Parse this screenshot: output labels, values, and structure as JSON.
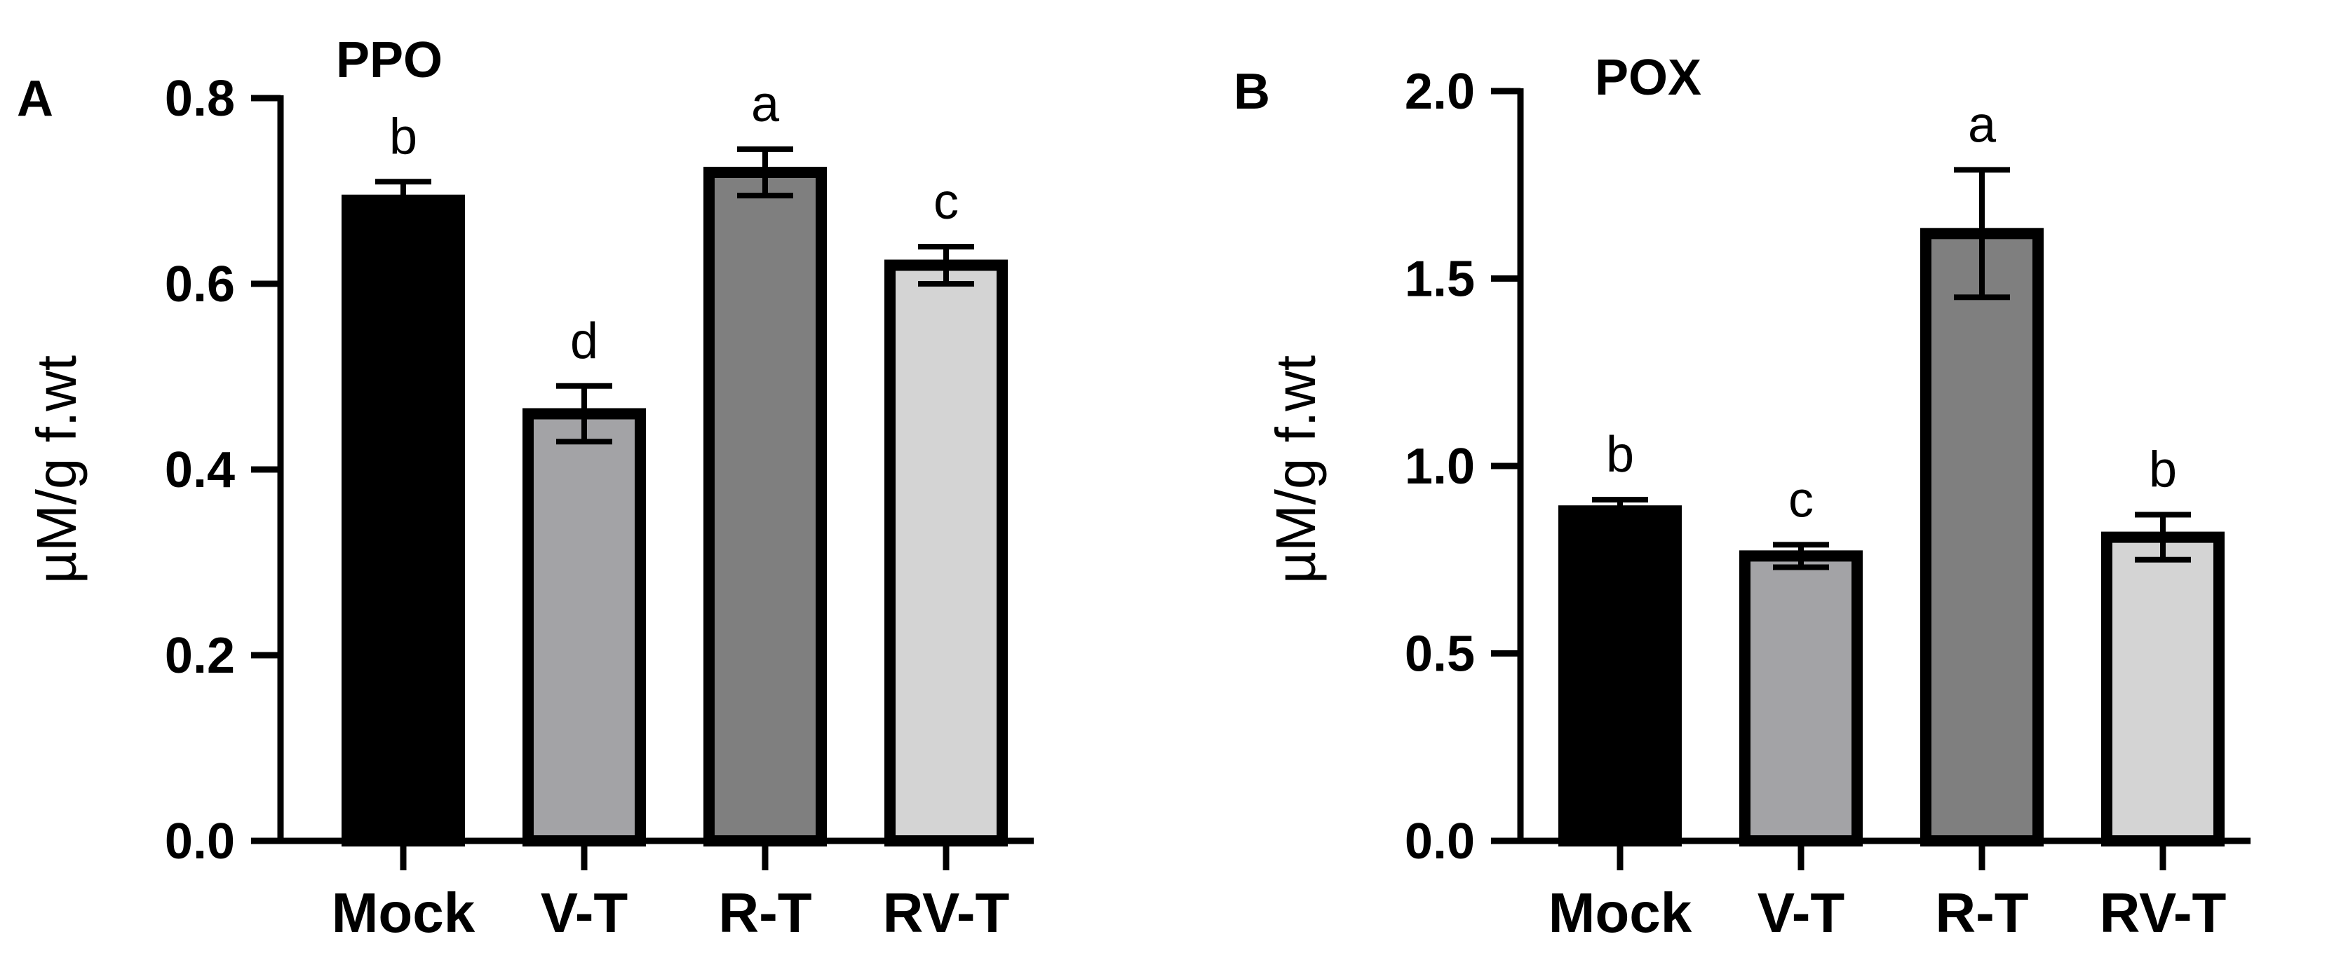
{
  "chart_data": [
    {
      "type": "bar",
      "panel_letter": "A",
      "title": "PPO",
      "categories": [
        "Mock",
        "V-T",
        "R-T",
        "RV-T"
      ],
      "values": [
        0.69,
        0.46,
        0.72,
        0.62
      ],
      "errors": [
        0.02,
        0.03,
        0.025,
        0.02
      ],
      "letters": [
        "b",
        "d",
        "a",
        "c"
      ],
      "colors": [
        "#000000",
        "#a3a3a6",
        "#7f7f7f",
        "#d4d4d4"
      ],
      "ylabel": "µM/g f.wt",
      "xlabel": "",
      "ylim": [
        0,
        0.8
      ],
      "yticks": [
        0.0,
        0.2,
        0.4,
        0.6,
        0.8
      ],
      "ytick_labels": [
        "0.0",
        "0.2",
        "0.4",
        "0.6",
        "0.8"
      ]
    },
    {
      "type": "bar",
      "panel_letter": "B",
      "title": "POX",
      "categories": [
        "Mock",
        "V-T",
        "R-T",
        "RV-T"
      ],
      "values": [
        0.88,
        0.76,
        1.62,
        0.81
      ],
      "errors": [
        0.03,
        0.03,
        0.17,
        0.06
      ],
      "letters": [
        "b",
        "c",
        "a",
        "b"
      ],
      "colors": [
        "#000000",
        "#a3a3a6",
        "#7f7f7f",
        "#d4d4d4"
      ],
      "ylabel": "µM/g f.wt",
      "xlabel": "",
      "ylim": [
        0,
        2.0
      ],
      "yticks": [
        0.0,
        0.5,
        1.0,
        1.5,
        2.0
      ],
      "ytick_labels": [
        "0.0",
        "0.5",
        "1.0",
        "1.5",
        "2.0"
      ]
    }
  ]
}
